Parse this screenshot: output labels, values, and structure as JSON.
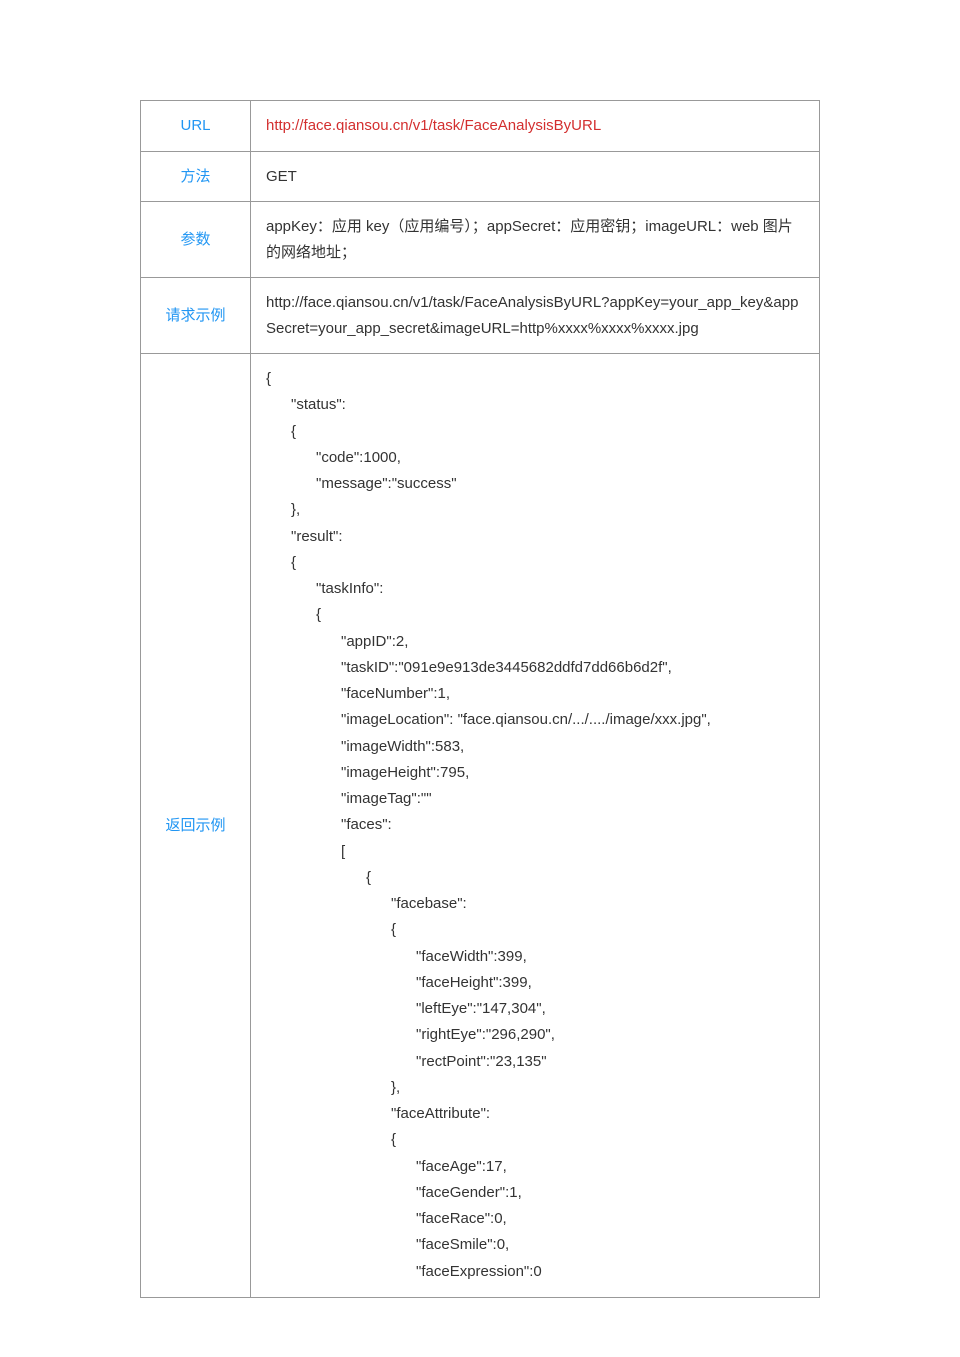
{
  "table": {
    "rows": [
      {
        "label": "URL",
        "value": "http://face.qiansou.cn/v1/task/FaceAnalysisByURL",
        "value_color": "#d32f2f"
      },
      {
        "label": "方法",
        "value": "GET",
        "value_color": "#333333"
      },
      {
        "label": "参数",
        "value": "appKey：应用 key（应用编号）；appSecret：应用密钥；imageURL：web 图片的网络地址；",
        "value_color": "#333333"
      },
      {
        "label": "请求示例",
        "value": "http://face.qiansou.cn/v1/task/FaceAnalysisByURL?appKey=your_app_key&appSecret=your_app_secret&imageURL=http%xxxx%xxxx%xxxx.jpg",
        "value_color": "#333333"
      },
      {
        "label": "返回示例",
        "value": "{\n      \"status\":\n      {\n            \"code\":1000,\n            \"message\":\"success\"\n      },\n      \"result\":\n      {\n            \"taskInfo\":\n            {\n                  \"appID\":2,\n                  \"taskID\":\"091e9e913de3445682ddfd7dd66b6d2f\",\n                  \"faceNumber\":1,\n                  \"imageLocation\": \"face.qiansou.cn/.../..../image/xxx.jpg\",\n                  \"imageWidth\":583,\n                  \"imageHeight\":795,\n                  \"imageTag\":\"\"\n                  \"faces\":\n                  [\n                        {\n                              \"facebase\":\n                              {\n                                    \"faceWidth\":399,\n                                    \"faceHeight\":399,\n                                    \"leftEye\":\"147,304\",\n                                    \"rightEye\":\"296,290\",\n                                    \"rectPoint\":\"23,135\"\n                              },\n                              \"faceAttribute\":\n                              {\n                                    \"faceAge\":17,\n                                    \"faceGender\":1,\n                                    \"faceRace\":0,\n                                    \"faceSmile\":0,\n                                    \"faceExpression\":0",
        "value_color": "#333333",
        "is_json": true
      }
    ],
    "label_color": "#2196F3",
    "border_color": "#999999"
  }
}
